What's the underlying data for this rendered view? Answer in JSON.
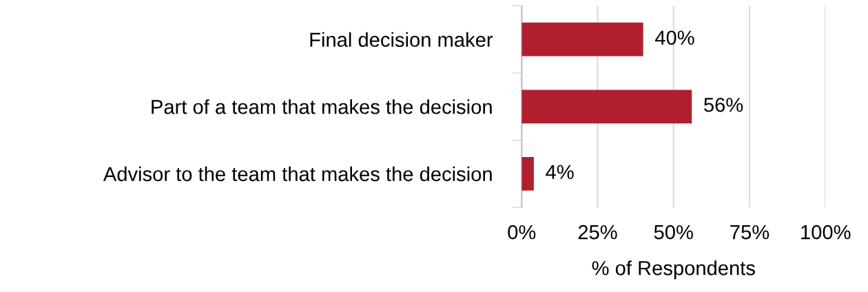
{
  "chart_data": {
    "type": "bar",
    "orientation": "horizontal",
    "categories": [
      "Final decision maker",
      "Part of a team that makes the decision",
      "Advisor to the team that makes the decision"
    ],
    "values": [
      40,
      56,
      4
    ],
    "color": "#b01f2e",
    "value_labels": [
      "40%",
      "56%",
      "4%"
    ],
    "xlabel": "% of Respondents",
    "xlim": [
      0,
      100
    ],
    "xticks": [
      {
        "value": 0,
        "label": "0%"
      },
      {
        "value": 25,
        "label": "25%"
      },
      {
        "value": 50,
        "label": "50%"
      },
      {
        "value": 75,
        "label": "75%"
      },
      {
        "value": 100,
        "label": "100%"
      }
    ],
    "grid": "x",
    "legend": false
  }
}
